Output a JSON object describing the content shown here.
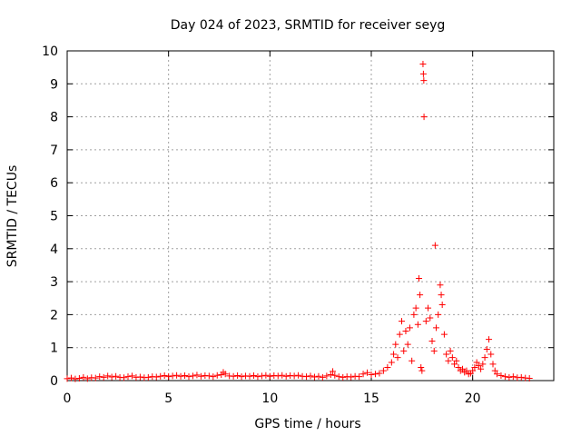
{
  "chart_data": {
    "type": "scatter",
    "title": "Day 024 of 2023, SRMTID for receiver seyg",
    "xlabel": "GPS time / hours",
    "ylabel": "SRMTID / TECUs",
    "xlim": [
      0,
      24
    ],
    "ylim": [
      0,
      10
    ],
    "xticks": [
      "0",
      "5",
      "10",
      "15",
      "20"
    ],
    "yticks": [
      "0",
      "1",
      "2",
      "3",
      "4",
      "5",
      "6",
      "7",
      "8",
      "9",
      "10"
    ],
    "grid": true,
    "marker": "+",
    "series": [
      {
        "name": "SRMTID",
        "color": "#ff0000",
        "points": [
          [
            0.0,
            0.06
          ],
          [
            0.2,
            0.08
          ],
          [
            0.4,
            0.05
          ],
          [
            0.6,
            0.07
          ],
          [
            0.8,
            0.1
          ],
          [
            1.0,
            0.06
          ],
          [
            1.2,
            0.09
          ],
          [
            1.4,
            0.08
          ],
          [
            1.6,
            0.12
          ],
          [
            1.8,
            0.1
          ],
          [
            2.0,
            0.14
          ],
          [
            2.2,
            0.11
          ],
          [
            2.4,
            0.13
          ],
          [
            2.6,
            0.1
          ],
          [
            2.8,
            0.09
          ],
          [
            3.0,
            0.12
          ],
          [
            3.2,
            0.14
          ],
          [
            3.4,
            0.1
          ],
          [
            3.6,
            0.11
          ],
          [
            3.8,
            0.09
          ],
          [
            4.0,
            0.1
          ],
          [
            4.2,
            0.12
          ],
          [
            4.4,
            0.11
          ],
          [
            4.6,
            0.13
          ],
          [
            4.8,
            0.15
          ],
          [
            5.0,
            0.12
          ],
          [
            5.2,
            0.14
          ],
          [
            5.4,
            0.16
          ],
          [
            5.6,
            0.13
          ],
          [
            5.8,
            0.15
          ],
          [
            6.0,
            0.12
          ],
          [
            6.2,
            0.14
          ],
          [
            6.4,
            0.17
          ],
          [
            6.6,
            0.13
          ],
          [
            6.8,
            0.15
          ],
          [
            7.0,
            0.14
          ],
          [
            7.2,
            0.12
          ],
          [
            7.4,
            0.16
          ],
          [
            7.6,
            0.18
          ],
          [
            7.7,
            0.25
          ],
          [
            7.8,
            0.2
          ],
          [
            8.0,
            0.14
          ],
          [
            8.2,
            0.13
          ],
          [
            8.4,
            0.15
          ],
          [
            8.6,
            0.12
          ],
          [
            8.8,
            0.14
          ],
          [
            9.0,
            0.13
          ],
          [
            9.2,
            0.15
          ],
          [
            9.4,
            0.12
          ],
          [
            9.6,
            0.14
          ],
          [
            9.8,
            0.16
          ],
          [
            10.0,
            0.13
          ],
          [
            10.2,
            0.15
          ],
          [
            10.4,
            0.14
          ],
          [
            10.6,
            0.16
          ],
          [
            10.8,
            0.13
          ],
          [
            11.0,
            0.15
          ],
          [
            11.2,
            0.14
          ],
          [
            11.4,
            0.16
          ],
          [
            11.6,
            0.13
          ],
          [
            11.8,
            0.12
          ],
          [
            12.0,
            0.14
          ],
          [
            12.2,
            0.11
          ],
          [
            12.4,
            0.13
          ],
          [
            12.6,
            0.1
          ],
          [
            12.8,
            0.14
          ],
          [
            13.0,
            0.18
          ],
          [
            13.1,
            0.28
          ],
          [
            13.2,
            0.16
          ],
          [
            13.4,
            0.12
          ],
          [
            13.6,
            0.1
          ],
          [
            13.8,
            0.12
          ],
          [
            14.0,
            0.11
          ],
          [
            14.2,
            0.13
          ],
          [
            14.4,
            0.12
          ],
          [
            14.6,
            0.2
          ],
          [
            14.8,
            0.24
          ],
          [
            15.0,
            0.18
          ],
          [
            15.2,
            0.2
          ],
          [
            15.4,
            0.22
          ],
          [
            15.6,
            0.3
          ],
          [
            15.8,
            0.4
          ],
          [
            16.0,
            0.55
          ],
          [
            16.1,
            0.8
          ],
          [
            16.2,
            1.1
          ],
          [
            16.3,
            0.7
          ],
          [
            16.4,
            1.4
          ],
          [
            16.5,
            1.8
          ],
          [
            16.6,
            0.9
          ],
          [
            16.7,
            1.5
          ],
          [
            16.8,
            1.1
          ],
          [
            16.9,
            1.6
          ],
          [
            17.0,
            0.6
          ],
          [
            17.1,
            2.0
          ],
          [
            17.2,
            2.2
          ],
          [
            17.3,
            1.7
          ],
          [
            17.35,
            3.1
          ],
          [
            17.4,
            2.6
          ],
          [
            17.45,
            0.4
          ],
          [
            17.5,
            0.3
          ],
          [
            17.55,
            9.6
          ],
          [
            17.57,
            9.3
          ],
          [
            17.59,
            9.1
          ],
          [
            17.6,
            8.0
          ],
          [
            17.7,
            1.8
          ],
          [
            17.8,
            2.2
          ],
          [
            17.9,
            1.9
          ],
          [
            18.0,
            1.2
          ],
          [
            18.1,
            0.9
          ],
          [
            18.15,
            4.1
          ],
          [
            18.2,
            1.6
          ],
          [
            18.3,
            2.0
          ],
          [
            18.4,
            2.9
          ],
          [
            18.45,
            2.6
          ],
          [
            18.5,
            2.3
          ],
          [
            18.6,
            1.4
          ],
          [
            18.7,
            0.8
          ],
          [
            18.8,
            0.6
          ],
          [
            18.9,
            0.9
          ],
          [
            19.0,
            0.7
          ],
          [
            19.1,
            0.5
          ],
          [
            19.2,
            0.6
          ],
          [
            19.3,
            0.4
          ],
          [
            19.4,
            0.3
          ],
          [
            19.5,
            0.35
          ],
          [
            19.6,
            0.25
          ],
          [
            19.7,
            0.3
          ],
          [
            19.8,
            0.2
          ],
          [
            19.9,
            0.22
          ],
          [
            20.0,
            0.3
          ],
          [
            20.1,
            0.4
          ],
          [
            20.2,
            0.55
          ],
          [
            20.3,
            0.45
          ],
          [
            20.4,
            0.35
          ],
          [
            20.5,
            0.5
          ],
          [
            20.6,
            0.7
          ],
          [
            20.7,
            0.95
          ],
          [
            20.8,
            1.25
          ],
          [
            20.9,
            0.8
          ],
          [
            21.0,
            0.5
          ],
          [
            21.1,
            0.3
          ],
          [
            21.2,
            0.2
          ],
          [
            21.4,
            0.15
          ],
          [
            21.6,
            0.12
          ],
          [
            21.8,
            0.1
          ],
          [
            22.0,
            0.12
          ],
          [
            22.2,
            0.09
          ],
          [
            22.4,
            0.1
          ],
          [
            22.6,
            0.08
          ],
          [
            22.8,
            0.07
          ]
        ]
      }
    ]
  }
}
